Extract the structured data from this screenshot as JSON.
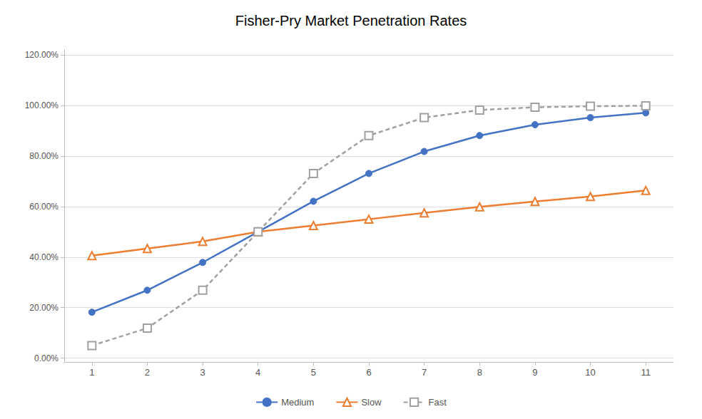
{
  "chart_data": {
    "type": "line",
    "title": "Fisher-Pry Market Penetration Rates",
    "x": [
      1,
      2,
      3,
      4,
      5,
      6,
      7,
      8,
      9,
      10,
      11
    ],
    "series": [
      {
        "name": "Medium",
        "color": "#4472C4",
        "marker": "circle",
        "line_style": "solid",
        "values": [
          0.182,
          0.269,
          0.379,
          0.5,
          0.621,
          0.731,
          0.818,
          0.881,
          0.924,
          0.952,
          0.971
        ]
      },
      {
        "name": "Slow",
        "color": "#ED7D31",
        "marker": "triangle",
        "line_style": "solid",
        "values": [
          0.406,
          0.434,
          0.462,
          0.5,
          0.525,
          0.55,
          0.575,
          0.599,
          0.62,
          0.64,
          0.664
        ]
      },
      {
        "name": "Fast",
        "color": "#A0A0A0",
        "marker": "square",
        "line_style": "dashed",
        "values": [
          0.05,
          0.119,
          0.269,
          0.5,
          0.731,
          0.881,
          0.952,
          0.982,
          0.993,
          0.997,
          0.999
        ]
      }
    ],
    "xlim": [
      0.5,
      11.5
    ],
    "xticks": [
      1,
      2,
      3,
      4,
      5,
      6,
      7,
      8,
      9,
      10,
      11
    ],
    "ylim": [
      -0.015,
      1.22
    ],
    "yticks": [
      {
        "value": 0.0,
        "label": "0.00%"
      },
      {
        "value": 0.2,
        "label": "20.00%"
      },
      {
        "value": 0.4,
        "label": "40.00%"
      },
      {
        "value": 0.6,
        "label": "60.00%"
      },
      {
        "value": 0.8,
        "label": "80.00%"
      },
      {
        "value": 1.0,
        "label": "100.00%"
      },
      {
        "value": 1.2,
        "label": "120.00%"
      }
    ],
    "grid": true,
    "legend": "bottom"
  }
}
